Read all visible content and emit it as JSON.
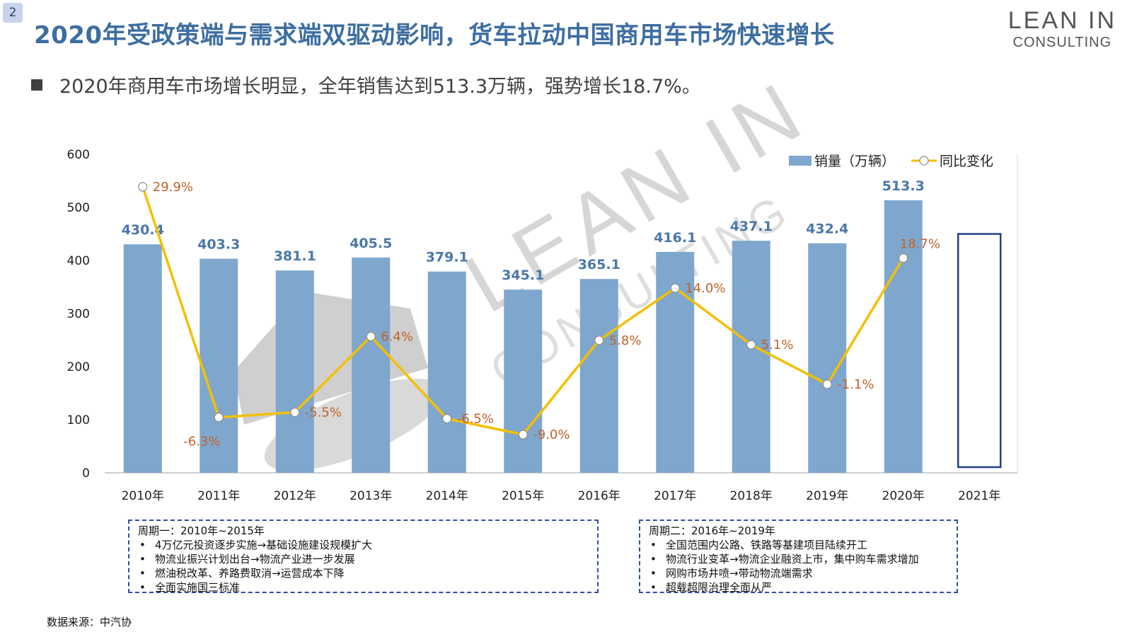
{
  "page_number": "2",
  "title": "2020年受政策端与需求端双驱动影响，货车拉动中国商用车市场快速增长",
  "logo": {
    "line1": "LEAN IN",
    "line2": "CONSULTING"
  },
  "watermark": {
    "line1": "LEAN IN",
    "line2": "CONSULTING"
  },
  "summary": "2020年商用车市场增长明显，全年销售达到513.3万辆，强势增长18.7%。",
  "colors": {
    "bar": "#7fa7cd",
    "line": "#f5bf00",
    "value_label": "#4a78a8",
    "pct_label": "#c0632a",
    "title": "#3d6ea0",
    "forecast_border": "#24408e"
  },
  "chart_data": {
    "type": "bar+line",
    "categories": [
      "2010年",
      "2011年",
      "2012年",
      "2013年",
      "2014年",
      "2015年",
      "2016年",
      "2017年",
      "2018年",
      "2019年",
      "2020年",
      "2021年"
    ],
    "series": [
      {
        "name": "销量（万辆）",
        "type": "bar",
        "values": [
          430.4,
          403.3,
          381.1,
          405.5,
          379.1,
          345.1,
          365.1,
          416.1,
          437.1,
          432.4,
          513.3,
          null
        ],
        "labels": [
          "430.4",
          "403.3",
          "381.1",
          "405.5",
          "379.1",
          "345.1",
          "365.1",
          "416.1",
          "437.1",
          "432.4",
          "513.3",
          ""
        ]
      },
      {
        "name": "同比变化",
        "type": "line",
        "values": [
          29.9,
          -6.3,
          -5.5,
          6.4,
          -6.5,
          -9.0,
          5.8,
          14.0,
          5.1,
          -1.1,
          18.7,
          null
        ],
        "labels": [
          "29.9%",
          "-6.3%",
          "-5.5%",
          "6.4%",
          "-6.5%",
          "-9.0%",
          "5.8%",
          "14.0%",
          "5.1%",
          "-1.1%",
          "18.7%",
          ""
        ]
      }
    ],
    "forecast_category": "2021年",
    "forecast_value": 450,
    "y_axis": {
      "min": 0,
      "max": 600,
      "ticks": [
        "0",
        "100",
        "200",
        "300",
        "400",
        "500",
        "600"
      ]
    },
    "line_axis": {
      "min": -15,
      "max": 35
    },
    "legend": {
      "position": "top-right",
      "items": [
        "销量（万辆）",
        "同比变化"
      ]
    }
  },
  "notes": [
    {
      "title": "周期一：2010年~2015年",
      "items": [
        "4万亿元投资逐步实施→基础设施建设规模扩大",
        "物流业振兴计划出台→物流产业进一步发展",
        "燃油税改革、养路费取消→运营成本下降",
        "全面实施国三标准"
      ]
    },
    {
      "title": "周期二：2016年~2019年",
      "items": [
        "全国范围内公路、铁路等基建项目陆续开工",
        "物流行业变革→物流企业融资上市，集中购车需求增加",
        "网购市场井喷→带动物流端需求",
        "超载超限治理全面从严"
      ]
    }
  ],
  "source": "数据来源：中汽协"
}
